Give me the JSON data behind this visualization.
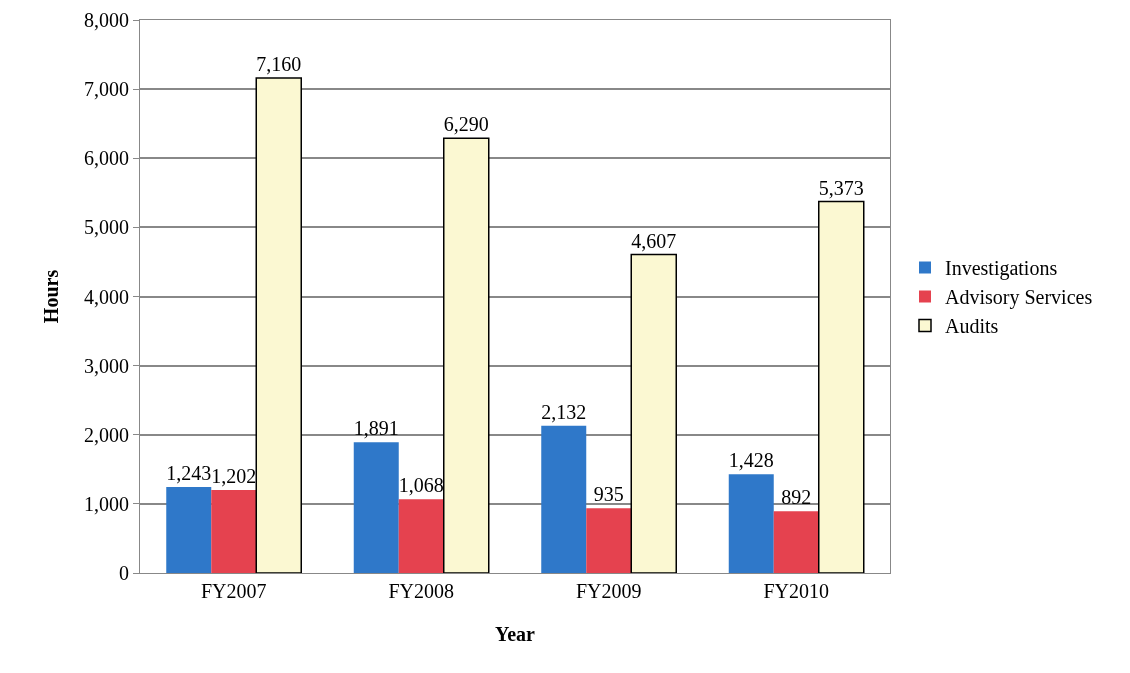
{
  "chart_data": {
    "type": "bar",
    "xlabel": "Year",
    "ylabel": "Hours",
    "categories": [
      "FY2007",
      "FY2008",
      "FY2009",
      "FY2010"
    ],
    "series": [
      {
        "name": "Investigations",
        "color": "#2f78c9",
        "values": [
          1243,
          1891,
          2132,
          1428
        ],
        "value_labels": [
          "1,243",
          "1,891",
          "2,132",
          "1,428"
        ]
      },
      {
        "name": "Advisory Services",
        "color": "#e5424f",
        "values": [
          1202,
          1068,
          935,
          892
        ],
        "value_labels": [
          "1,202",
          "1,068",
          "935",
          "892"
        ]
      },
      {
        "name": "Audits",
        "color": "#fbf8d2",
        "values": [
          7160,
          6290,
          4607,
          5373
        ],
        "value_labels": [
          "7,160",
          "6,290",
          "4,607",
          "5,373"
        ]
      }
    ],
    "ylim": [
      0,
      8000
    ],
    "yticks": [
      {
        "value": 0,
        "label": "0"
      },
      {
        "value": 1000,
        "label": "1,000"
      },
      {
        "value": 2000,
        "label": "2,000"
      },
      {
        "value": 3000,
        "label": "3,000"
      },
      {
        "value": 4000,
        "label": "4,000"
      },
      {
        "value": 5000,
        "label": "5,000"
      },
      {
        "value": 6000,
        "label": "6,000"
      },
      {
        "value": 7000,
        "label": "7,000"
      },
      {
        "value": 8000,
        "label": "8,000"
      }
    ],
    "grid": "y",
    "legend": "right"
  }
}
